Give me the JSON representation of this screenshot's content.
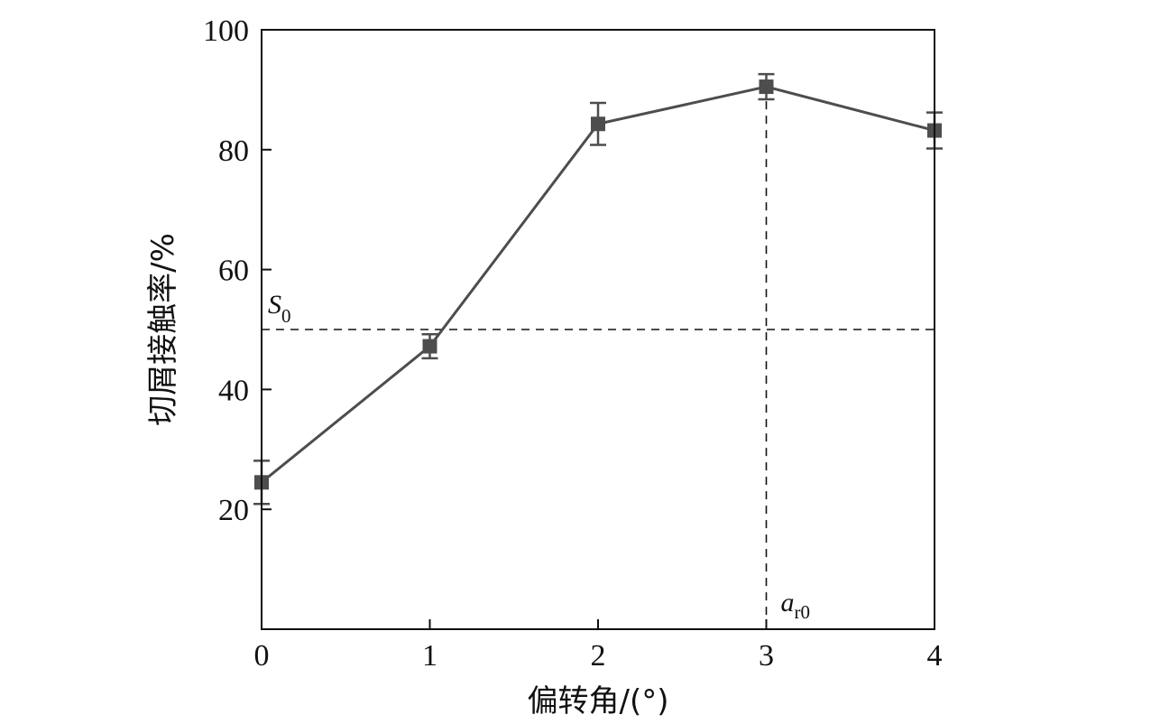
{
  "chart_data": {
    "type": "line",
    "xlabel": "偏转角/(°)",
    "ylabel": "切屑接触率/%",
    "xlim": [
      0,
      4
    ],
    "ylim": [
      0,
      100
    ],
    "x_ticks": [
      0,
      1,
      2,
      3,
      4
    ],
    "y_ticks": [
      20,
      40,
      60,
      80,
      100
    ],
    "x_tick_labels": [
      "0",
      "1",
      "2",
      "3",
      "4"
    ],
    "y_tick_labels": [
      "20",
      "40",
      "60",
      "80",
      "100"
    ],
    "grid": false,
    "series": [
      {
        "x": [
          0,
          1,
          2,
          3,
          4
        ],
        "y": [
          24.5,
          47.2,
          84.3,
          90.5,
          83.2
        ],
        "error": [
          3.6,
          2.0,
          3.5,
          2.1,
          3.0
        ],
        "color": "#4d4d4d",
        "marker": "square"
      }
    ],
    "reference_lines": [
      {
        "orientation": "horizontal",
        "value": 50,
        "style": "dashed",
        "label": "S",
        "label_sub": "0"
      },
      {
        "orientation": "vertical",
        "value": 3,
        "style": "dashed",
        "label": "a",
        "label_sub": "r0"
      }
    ]
  }
}
